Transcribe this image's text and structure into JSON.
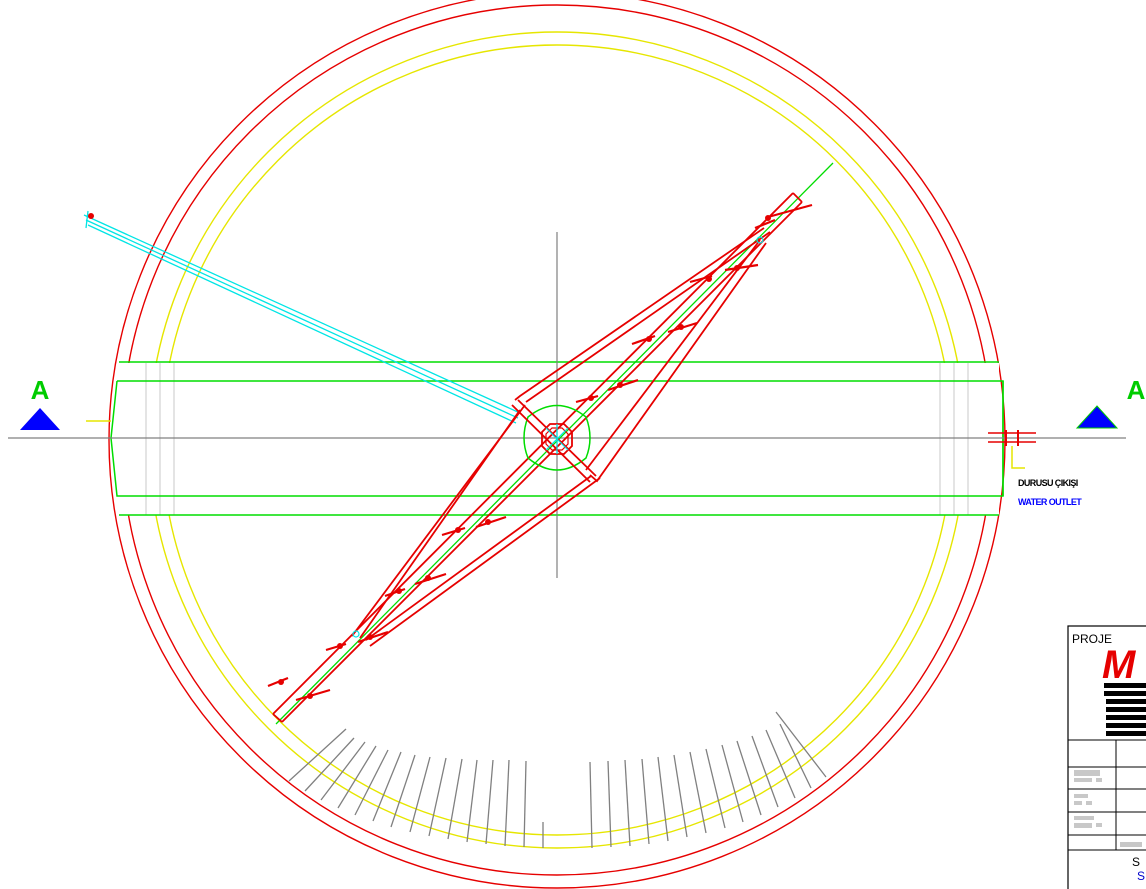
{
  "section_marks": {
    "left": "A",
    "right": "A"
  },
  "outlet_note": {
    "tr": "DURUSU ÇIKIŞI",
    "en": "WATER OUTLET"
  },
  "title_block": {
    "project_label": "PROJE",
    "logo_text": "M",
    "footer_text": "S",
    "footer_sub": "S"
  },
  "colors": {
    "outer_wall": "#e60000",
    "inner_wall": "#e6e600",
    "channel": "#00dd00",
    "pipe": "#00e5e5",
    "axis": "#808080",
    "marker": "#0000ff"
  }
}
